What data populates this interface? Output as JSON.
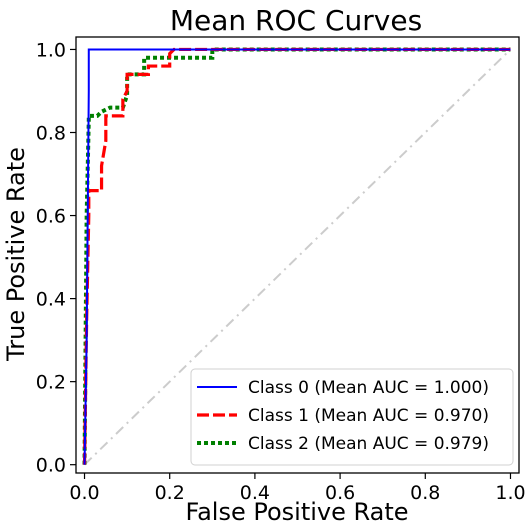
{
  "chart_data": {
    "type": "line",
    "title": "Mean ROC Curves",
    "xlabel": "False Positive Rate",
    "ylabel": "True Positive Rate",
    "xlim": [
      -0.02,
      1.02
    ],
    "ylim": [
      -0.02,
      1.03
    ],
    "xticks": [
      "0.0",
      "0.2",
      "0.4",
      "0.6",
      "0.8",
      "1.0"
    ],
    "yticks": [
      "0.0",
      "0.2",
      "0.4",
      "0.6",
      "0.8",
      "1.0"
    ],
    "grid": false,
    "legend_position": "bottom-right",
    "reference_line": {
      "x": [
        0,
        1
      ],
      "y": [
        0,
        1
      ],
      "color": "#cccccc",
      "style": "dash-dot"
    },
    "series": [
      {
        "name": "Class 0 (Mean AUC = 1.000)",
        "color": "#0000ff",
        "style": "solid",
        "x": [
          0,
          0.005,
          0.01,
          0.01,
          1.0
        ],
        "y": [
          0,
          0.3,
          0.9,
          1.0,
          1.0
        ]
      },
      {
        "name": "Class 1 (Mean AUC = 0.970)",
        "color": "#ff0000",
        "style": "dashed",
        "x": [
          0,
          0.005,
          0.01,
          0.01,
          0.04,
          0.04,
          0.05,
          0.05,
          0.09,
          0.09,
          0.1,
          0.1,
          0.15,
          0.15,
          0.2,
          0.2,
          0.21,
          1.0
        ],
        "y": [
          0,
          0.35,
          0.6,
          0.66,
          0.66,
          0.72,
          0.78,
          0.84,
          0.84,
          0.88,
          0.9,
          0.94,
          0.94,
          0.96,
          0.96,
          0.99,
          1.0,
          1.0
        ]
      },
      {
        "name": "Class 2 (Mean AUC = 0.979)",
        "color": "#008000",
        "style": "dotted",
        "x": [
          0,
          0.005,
          0.01,
          0.01,
          0.03,
          0.04,
          0.06,
          0.09,
          0.1,
          0.1,
          0.13,
          0.14,
          0.14,
          0.2,
          0.2,
          0.3,
          0.3,
          1.0
        ],
        "y": [
          0,
          0.6,
          0.83,
          0.84,
          0.84,
          0.85,
          0.86,
          0.86,
          0.89,
          0.94,
          0.94,
          0.94,
          0.98,
          0.98,
          0.98,
          0.98,
          1.0,
          1.0
        ]
      }
    ]
  }
}
